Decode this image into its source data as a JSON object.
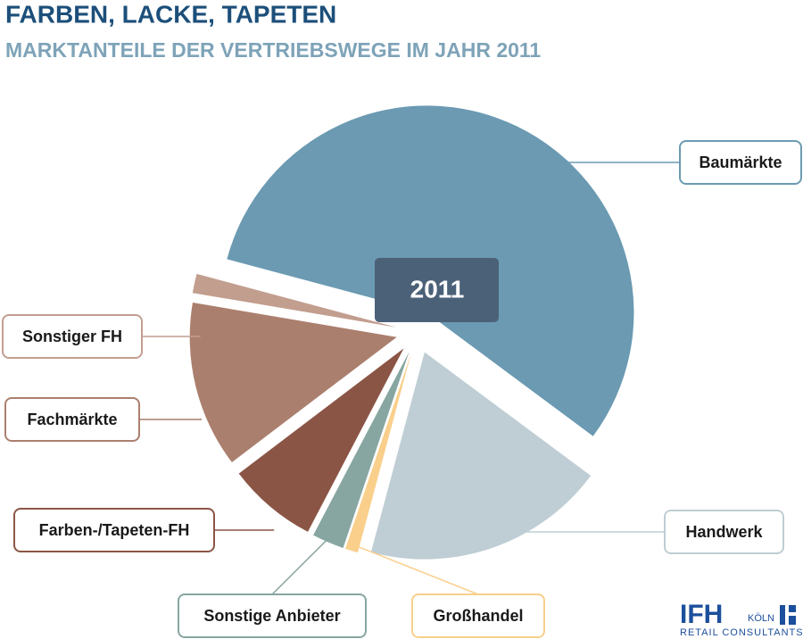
{
  "chart_data": {
    "type": "pie",
    "title": "FARBEN, LACKE, TAPETEN",
    "subtitle": "MARKTANTEILE DER VERTRIEBSWEGE IM JAHR 2011",
    "center_label": "2011",
    "categories": [
      "Baumärkte",
      "Handwerk",
      "Großhandel",
      "Sonstige Anbieter",
      "Farben-/Tapeten-FH",
      "Fachmärkte",
      "Sonstiger FH"
    ],
    "values": [
      56,
      19,
      1,
      2.5,
      7,
      13,
      1.5
    ],
    "colors": [
      "#6b9ab2",
      "#bfcdd4",
      "#f9cf8b",
      "#87a6a1",
      "#8b5546",
      "#ab7f6e",
      "#c29e8f"
    ]
  },
  "logo": {
    "name": "IFH",
    "city": "KÖLN",
    "tagline": "RETAIL CONSULTANTS"
  }
}
